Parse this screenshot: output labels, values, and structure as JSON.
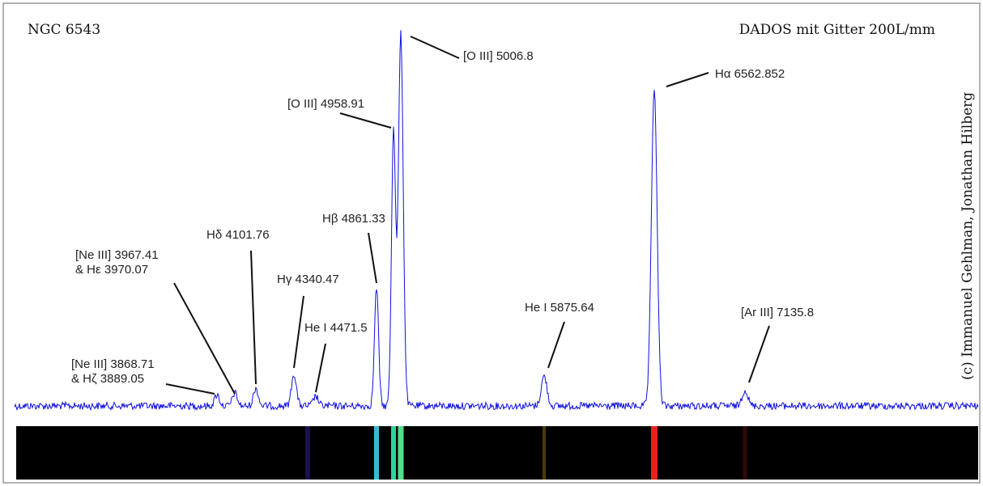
{
  "title": "NGC 6543",
  "subtitle": "DADOS mit Gitter 200L/mm",
  "credit": "(c) Immanuel Gehlman, Jonathan Hilberg",
  "annotations": [
    {
      "lines": [
        "[Ne III] 3868.71",
        "& Hζ 3889.05"
      ]
    },
    {
      "lines": [
        "[Ne III] 3967.41",
        "& Hε 3970.07"
      ]
    },
    {
      "lines": [
        "Hδ 4101.76"
      ]
    },
    {
      "lines": [
        "Hγ 4340.47"
      ]
    },
    {
      "lines": [
        "He I 4471.5"
      ]
    },
    {
      "lines": [
        "Hβ 4861.33"
      ]
    },
    {
      "lines": [
        "[O III] 4958.91"
      ]
    },
    {
      "lines": [
        "[O III] 5006.8"
      ]
    },
    {
      "lines": [
        "Hα 6562.852"
      ]
    },
    {
      "lines": [
        "He I 5875.64"
      ]
    },
    {
      "lines": [
        "[Ar III] 7135.8"
      ]
    }
  ]
}
